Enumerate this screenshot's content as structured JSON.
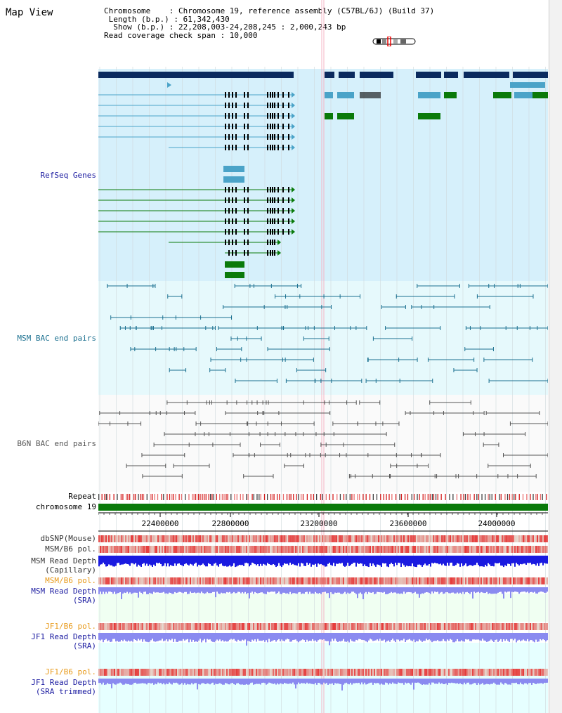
{
  "app_title": "Map View",
  "header": {
    "chromosome_line": "Chromosome    : Chromosome 19, reference assembly (C57BL/6J) (Build 37)",
    "length_line": " Length (b.p.) : 61,342,430",
    "show_line": "  Show (b.p.) : 22,208,003-24,208,245 : 2,000,243 bp",
    "coverage_line": "Read coverage check span : 10,000"
  },
  "tracks": {
    "refseq": "RefSeq Genes",
    "msm_bac": "MSM BAC end pairs",
    "b6n_bac": "B6N BAC end pairs",
    "repeat": "Repeat",
    "chromosome": "chromosome 19",
    "dbsnp": "dbSNP(Mouse)",
    "msm_pol1": "MSM/B6 pol.",
    "msm_depth_cap_1": "MSM Read Depth",
    "msm_depth_cap_2": "(Capillary)",
    "msm_pol2": "MSM/B6 pol.",
    "msm_depth_sra_1": "MSM Read Depth",
    "msm_depth_sra_2": "(SRA)",
    "jf1_pol1": "JF1/B6 pol.",
    "jf1_depth_1": "JF1 Read Depth",
    "jf1_depth_2": "(SRA)",
    "jf1_pol2": "JF1/B6 pol.",
    "jf1_trim_1": "JF1 Read Depth",
    "jf1_trim_2": "(SRA trimmed)"
  },
  "axis": {
    "ticks": [
      "22400000",
      "22800000",
      "23200000",
      "23600000",
      "24000000"
    ]
  },
  "colors": {
    "refseq_bg": "#d6f0fb",
    "msm_bg": "#e6f9fc",
    "b6n_bg": "#fafafa",
    "dark_navy": "#0a2a5e",
    "light_blue": "#4aa3c8",
    "green": "#0a7a0a",
    "teal": "#1a6f8f",
    "gray_line": "#555555",
    "label_blue": "#1a1aa0",
    "label_teal": "#1a6f8f",
    "label_orange": "#e89a1a",
    "depth_blue": "#1a1ae0",
    "depth_light": "#8a8af0"
  }
}
